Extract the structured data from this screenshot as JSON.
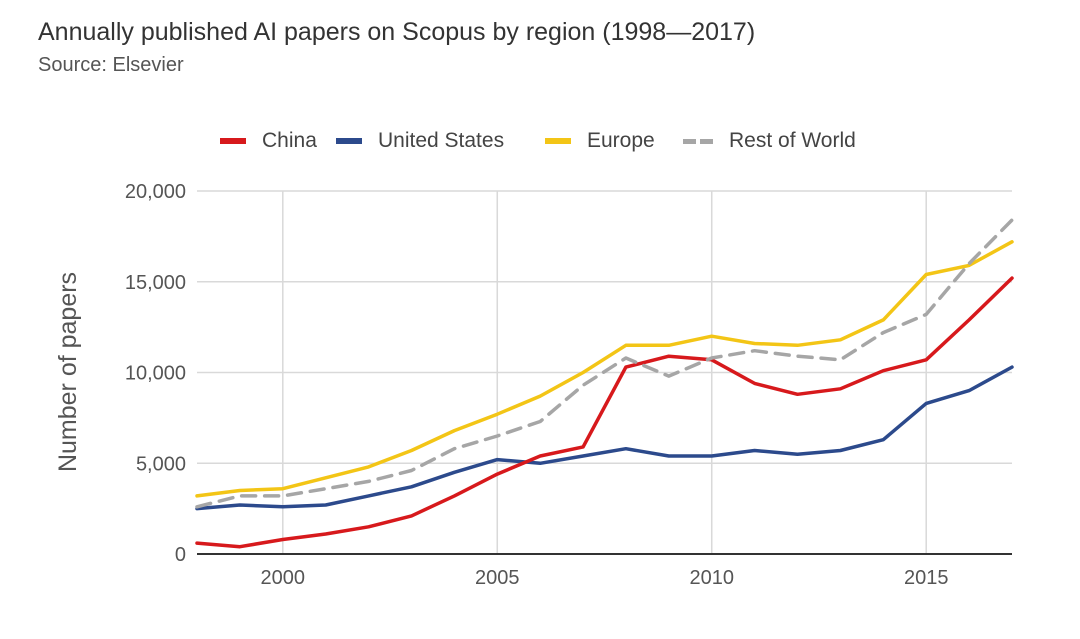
{
  "title": "Annually published AI papers on Scopus by region (1998—2017)",
  "subtitle": "Source: Elsevier",
  "chart_data": {
    "type": "line",
    "title": "Annually published AI papers on Scopus by region (1998—2017)",
    "subtitle": "Source: Elsevier",
    "xlabel": "",
    "ylabel": "Number of papers",
    "xlim": [
      1998,
      2017
    ],
    "ylim": [
      0,
      20000
    ],
    "x_ticks": [
      2000,
      2005,
      2010,
      2015
    ],
    "x_tick_labels": [
      "2000",
      "2005",
      "2010",
      "2015"
    ],
    "y_ticks": [
      0,
      5000,
      10000,
      15000,
      20000
    ],
    "y_tick_labels": [
      "0",
      "5,000",
      "10,000",
      "15,000",
      "20,000"
    ],
    "grid": true,
    "legend_position": "top",
    "x": [
      1998,
      1999,
      2000,
      2001,
      2002,
      2003,
      2004,
      2005,
      2006,
      2007,
      2008,
      2009,
      2010,
      2011,
      2012,
      2013,
      2014,
      2015,
      2016,
      2017
    ],
    "series": [
      {
        "name": "China",
        "color": "#d7191c",
        "style": "solid",
        "values": [
          600,
          400,
          800,
          1100,
          1500,
          2100,
          3200,
          4400,
          5400,
          5900,
          10300,
          10900,
          10700,
          9400,
          8800,
          9100,
          10100,
          10700,
          12900,
          15200
        ]
      },
      {
        "name": "United States",
        "color": "#2c4a8c",
        "style": "solid",
        "values": [
          2500,
          2700,
          2600,
          2700,
          3200,
          3700,
          4500,
          5200,
          5000,
          5400,
          5800,
          5400,
          5400,
          5700,
          5500,
          5700,
          6300,
          8300,
          9000,
          10300
        ]
      },
      {
        "name": "Europe",
        "color": "#f3c516",
        "style": "solid",
        "values": [
          3200,
          3500,
          3600,
          4200,
          4800,
          5700,
          6800,
          7700,
          8700,
          10000,
          11500,
          11500,
          12000,
          11600,
          11500,
          11800,
          12900,
          15400,
          15900,
          17200
        ]
      },
      {
        "name": "Rest of World",
        "color": "#a6a6a6",
        "style": "dashed",
        "values": [
          2600,
          3200,
          3200,
          3600,
          4000,
          4600,
          5800,
          6500,
          7300,
          9300,
          10800,
          9800,
          10800,
          11200,
          10900,
          10700,
          12200,
          13200,
          16000,
          18400
        ]
      }
    ]
  }
}
